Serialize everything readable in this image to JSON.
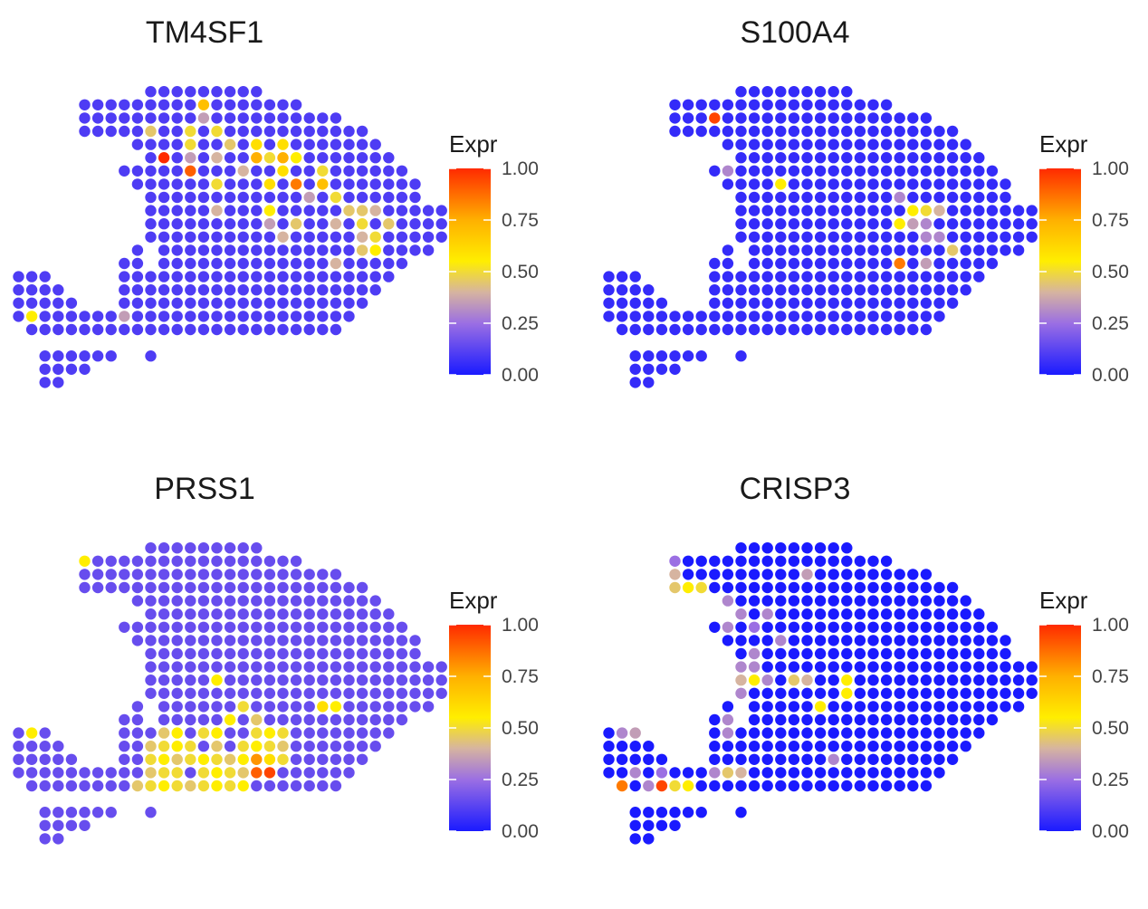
{
  "palette": {
    "stops": [
      {
        "at": 0.0,
        "color": "#1a1aff"
      },
      {
        "at": 0.25,
        "color": "#9b6fe3"
      },
      {
        "at": 0.4,
        "color": "#d6b4a0"
      },
      {
        "at": 0.55,
        "color": "#ffee00"
      },
      {
        "at": 0.75,
        "color": "#ffb000"
      },
      {
        "at": 1.0,
        "color": "#ff2a00"
      }
    ]
  },
  "legend": {
    "title": "Expr",
    "ticks": [
      "1.00",
      "0.75",
      "0.50",
      "0.25",
      "0.00"
    ]
  },
  "tissue": {
    "rows": [
      "000000000000000000000000000000000",
      "000000000000000000000000000000000",
      "000000000011111111100000000000000",
      "000001111111111111111100000000000",
      "000001111111111111111111100000000",
      "000001111111111111111111111000000",
      "000000000111111111111111111100000",
      "000000000011111111111111111110000",
      "000000001111111111111111111111000",
      "000000000111111111111111111111100",
      "000000000011111111111111111111100",
      "000000000011111111111111111111111",
      "000000000011111111111111111111111",
      "000000000011111111111111111111111",
      "000000000101111111111111111111110",
      "000000001101111111111111111111000",
      "111000001111111111111111111110000",
      "111100001111111111111111111100000",
      "111110001111111111111111111000000",
      "111111111111111111111111110000000",
      "011111111111111111111111100000000",
      "000000000000000000000000000000000",
      "001111110010000000000000000000000",
      "001111000000000000000000000000000",
      "001100000000000000000000000000000"
    ]
  },
  "chart_data": [
    {
      "type": "scatter",
      "title": "TM4SF1",
      "legend_title": "Expr",
      "color_range": [
        0,
        1
      ],
      "default_level": 0.1,
      "spots": [
        [
          4,
          14,
          0.35
        ],
        [
          3,
          14,
          0.7
        ],
        [
          5,
          10,
          0.45
        ],
        [
          5,
          13,
          0.5
        ],
        [
          5,
          15,
          0.5
        ],
        [
          6,
          13,
          0.5
        ],
        [
          6,
          16,
          0.45
        ],
        [
          6,
          18,
          0.6
        ],
        [
          6,
          20,
          0.6
        ],
        [
          7,
          7,
          0.35
        ],
        [
          7,
          9,
          0.35
        ],
        [
          7,
          11,
          1.0
        ],
        [
          7,
          13,
          0.35
        ],
        [
          7,
          15,
          0.4
        ],
        [
          7,
          18,
          0.75
        ],
        [
          7,
          19,
          0.5
        ],
        [
          7,
          20,
          0.75
        ],
        [
          7,
          21,
          0.55
        ],
        [
          8,
          13,
          0.9
        ],
        [
          8,
          17,
          0.4
        ],
        [
          8,
          20,
          0.6
        ],
        [
          8,
          23,
          0.5
        ],
        [
          9,
          15,
          0.5
        ],
        [
          9,
          19,
          0.6
        ],
        [
          9,
          21,
          0.85
        ],
        [
          9,
          23,
          0.7
        ],
        [
          10,
          22,
          0.35
        ],
        [
          10,
          24,
          0.5
        ],
        [
          11,
          15,
          0.4
        ],
        [
          11,
          19,
          0.55
        ],
        [
          11,
          25,
          0.45
        ],
        [
          11,
          26,
          0.45
        ],
        [
          11,
          27,
          0.4
        ],
        [
          12,
          19,
          0.35
        ],
        [
          12,
          21,
          0.45
        ],
        [
          12,
          24,
          0.4
        ],
        [
          12,
          26,
          0.5
        ],
        [
          12,
          28,
          0.45
        ],
        [
          13,
          20,
          0.4
        ],
        [
          13,
          26,
          0.4
        ],
        [
          13,
          27,
          0.5
        ],
        [
          14,
          26,
          0.45
        ],
        [
          14,
          27,
          0.55
        ],
        [
          15,
          24,
          0.4
        ],
        [
          19,
          1,
          0.55
        ],
        [
          19,
          8,
          0.35
        ]
      ]
    },
    {
      "type": "scatter",
      "title": "S100A4",
      "legend_title": "Expr",
      "color_range": [
        0,
        1
      ],
      "default_level": 0.05,
      "spots": [
        [
          4,
          8,
          0.95
        ],
        [
          8,
          9,
          0.3
        ],
        [
          9,
          13,
          0.55
        ],
        [
          10,
          22,
          0.3
        ],
        [
          11,
          23,
          0.55
        ],
        [
          11,
          24,
          0.5
        ],
        [
          11,
          25,
          0.4
        ],
        [
          12,
          22,
          0.55
        ],
        [
          12,
          23,
          0.35
        ],
        [
          12,
          24,
          0.3
        ],
        [
          13,
          24,
          0.3
        ],
        [
          13,
          25,
          0.3
        ],
        [
          14,
          26,
          0.45
        ],
        [
          15,
          22,
          0.85
        ],
        [
          15,
          24,
          0.35
        ]
      ]
    },
    {
      "type": "scatter",
      "title": "PRSS1",
      "legend_title": "Expr",
      "color_range": [
        0,
        1
      ],
      "default_level": 0.15,
      "spots": [
        [
          3,
          5,
          0.55
        ],
        [
          12,
          15,
          0.55
        ],
        [
          14,
          17,
          0.5
        ],
        [
          14,
          23,
          0.6
        ],
        [
          14,
          24,
          0.55
        ],
        [
          15,
          16,
          0.55
        ],
        [
          15,
          18,
          0.45
        ],
        [
          16,
          1,
          0.55
        ],
        [
          16,
          11,
          0.45
        ],
        [
          16,
          12,
          0.55
        ],
        [
          16,
          14,
          0.5
        ],
        [
          16,
          15,
          0.55
        ],
        [
          16,
          18,
          0.5
        ],
        [
          16,
          19,
          0.55
        ],
        [
          16,
          20,
          0.5
        ],
        [
          17,
          10,
          0.45
        ],
        [
          17,
          11,
          0.5
        ],
        [
          17,
          12,
          0.55
        ],
        [
          17,
          13,
          0.5
        ],
        [
          17,
          15,
          0.45
        ],
        [
          17,
          17,
          0.5
        ],
        [
          17,
          18,
          0.55
        ],
        [
          17,
          19,
          0.5
        ],
        [
          17,
          20,
          0.45
        ],
        [
          18,
          10,
          0.5
        ],
        [
          18,
          11,
          0.55
        ],
        [
          18,
          12,
          0.45
        ],
        [
          18,
          13,
          0.5
        ],
        [
          18,
          14,
          0.55
        ],
        [
          18,
          15,
          0.5
        ],
        [
          18,
          16,
          0.45
        ],
        [
          18,
          17,
          0.55
        ],
        [
          18,
          18,
          0.8
        ],
        [
          18,
          19,
          0.6
        ],
        [
          18,
          20,
          0.5
        ],
        [
          19,
          10,
          0.45
        ],
        [
          19,
          11,
          0.5
        ],
        [
          19,
          12,
          0.5
        ],
        [
          19,
          14,
          0.5
        ],
        [
          19,
          15,
          0.55
        ],
        [
          19,
          16,
          0.5
        ],
        [
          19,
          17,
          0.45
        ],
        [
          19,
          18,
          0.9
        ],
        [
          19,
          19,
          0.95
        ],
        [
          20,
          9,
          0.45
        ],
        [
          20,
          10,
          0.5
        ],
        [
          20,
          11,
          0.55
        ],
        [
          20,
          12,
          0.5
        ],
        [
          20,
          13,
          0.45
        ],
        [
          20,
          14,
          0.5
        ],
        [
          20,
          15,
          0.55
        ],
        [
          20,
          16,
          0.5
        ],
        [
          20,
          17,
          0.55
        ]
      ]
    },
    {
      "type": "scatter",
      "title": "CRISP3",
      "legend_title": "Expr",
      "color_range": [
        0,
        1
      ],
      "default_level": 0.0,
      "spots": [
        [
          3,
          5,
          0.25
        ],
        [
          4,
          5,
          0.4
        ],
        [
          4,
          15,
          0.35
        ],
        [
          5,
          5,
          0.45
        ],
        [
          5,
          6,
          0.55
        ],
        [
          5,
          7,
          0.5
        ],
        [
          6,
          9,
          0.3
        ],
        [
          7,
          10,
          0.3
        ],
        [
          7,
          12,
          0.3
        ],
        [
          8,
          9,
          0.3
        ],
        [
          8,
          11,
          0.25
        ],
        [
          9,
          8,
          0.35
        ],
        [
          9,
          13,
          0.3
        ],
        [
          10,
          8,
          0.3
        ],
        [
          10,
          11,
          0.3
        ],
        [
          11,
          10,
          0.3
        ],
        [
          11,
          11,
          0.3
        ],
        [
          12,
          10,
          0.4
        ],
        [
          12,
          11,
          0.55
        ],
        [
          12,
          12,
          0.3
        ],
        [
          12,
          14,
          0.45
        ],
        [
          12,
          15,
          0.4
        ],
        [
          12,
          18,
          0.55
        ],
        [
          13,
          18,
          0.55
        ],
        [
          13,
          10,
          0.3
        ],
        [
          14,
          16,
          0.55
        ],
        [
          15,
          7,
          0.4
        ],
        [
          15,
          9,
          0.3
        ],
        [
          16,
          1,
          0.3
        ],
        [
          16,
          2,
          0.35
        ],
        [
          16,
          9,
          0.3
        ],
        [
          18,
          17,
          0.3
        ],
        [
          19,
          2,
          0.3
        ],
        [
          19,
          4,
          0.25
        ],
        [
          19,
          8,
          0.3
        ],
        [
          19,
          9,
          0.45
        ],
        [
          19,
          10,
          0.4
        ],
        [
          20,
          1,
          0.85
        ],
        [
          20,
          3,
          0.3
        ],
        [
          20,
          4,
          0.95
        ],
        [
          20,
          5,
          0.5
        ],
        [
          20,
          6,
          0.55
        ]
      ]
    }
  ]
}
